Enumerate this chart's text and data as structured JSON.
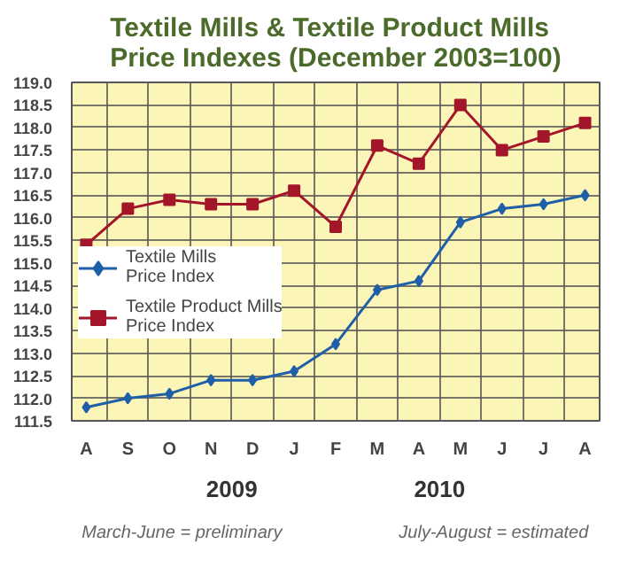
{
  "chart_data": {
    "type": "line",
    "title": "Textile Mills & Textile Product Mills\nPrice Indexes (December 2003=100)",
    "categories": [
      "A",
      "S",
      "O",
      "N",
      "D",
      "J",
      "F",
      "M",
      "A",
      "M",
      "J",
      "J",
      "A"
    ],
    "series": [
      {
        "name": "Textile Mills Price Index",
        "color": "#1f5fa8",
        "marker": "diamond",
        "values": [
          111.8,
          112.0,
          112.1,
          112.4,
          112.4,
          112.6,
          113.2,
          114.4,
          114.6,
          115.9,
          116.2,
          116.3,
          116.5
        ]
      },
      {
        "name": "Textile Product Mills Price Index",
        "color": "#a3162a",
        "marker": "square",
        "values": [
          115.4,
          116.2,
          116.4,
          116.3,
          116.3,
          116.6,
          115.8,
          117.6,
          117.2,
          118.5,
          117.5,
          117.8,
          118.1
        ]
      }
    ],
    "ylim": [
      111.5,
      119.0
    ],
    "yticks": [
      111.5,
      {
        "value": 112,
        "label": "112.0"
      },
      112.5,
      {
        "value": 113,
        "label": "113.0"
      },
      113.5,
      {
        "value": 114,
        "label": "114.0"
      },
      114.5,
      {
        "value": 115,
        "label": "115.0"
      },
      115.5,
      {
        "value": 116,
        "label": "116.0"
      },
      116.5,
      {
        "value": 117,
        "label": "117.0"
      },
      117.5,
      {
        "value": 118,
        "label": "118.0"
      },
      118.5,
      {
        "value": 119,
        "label": "119.0"
      }
    ],
    "annotations": [
      "2009",
      "2010",
      "March-June = preliminary",
      "July-August = estimated"
    ],
    "grid": true,
    "legend": "bottom left"
  }
}
